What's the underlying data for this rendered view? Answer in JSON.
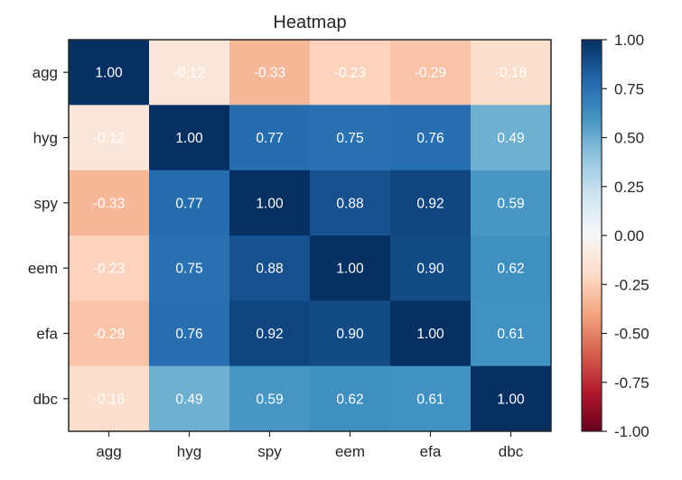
{
  "chart_data": {
    "type": "heatmap",
    "title": "Heatmap",
    "xlabel": "",
    "ylabel": "",
    "x": [
      "agg",
      "hyg",
      "spy",
      "eem",
      "efa",
      "dbc"
    ],
    "y": [
      "agg",
      "hyg",
      "spy",
      "eem",
      "efa",
      "dbc"
    ],
    "values": [
      [
        1.0,
        -0.12,
        -0.33,
        -0.23,
        -0.29,
        -0.18
      ],
      [
        -0.12,
        1.0,
        0.77,
        0.75,
        0.76,
        0.49
      ],
      [
        -0.33,
        0.77,
        1.0,
        0.88,
        0.92,
        0.59
      ],
      [
        -0.23,
        0.75,
        0.88,
        1.0,
        0.9,
        0.62
      ],
      [
        -0.29,
        0.76,
        0.92,
        0.9,
        1.0,
        0.61
      ],
      [
        -0.18,
        0.49,
        0.59,
        0.62,
        0.61,
        1.0
      ]
    ],
    "cell_labels": [
      [
        "1.00",
        "-0.12",
        "-0.33",
        "-0.23",
        "-0.29",
        "-0.18"
      ],
      [
        "-0.12",
        "1.00",
        "0.77",
        "0.75",
        "0.76",
        "0.49"
      ],
      [
        "-0.33",
        "0.77",
        "1.00",
        "0.88",
        "0.92",
        "0.59"
      ],
      [
        "-0.23",
        "0.75",
        "0.88",
        "1.00",
        "0.90",
        "0.62"
      ],
      [
        "-0.29",
        "0.76",
        "0.92",
        "0.90",
        "1.00",
        "0.61"
      ],
      [
        "-0.18",
        "0.49",
        "0.59",
        "0.62",
        "0.61",
        "1.00"
      ]
    ],
    "colorbar": {
      "range": [
        -1.0,
        1.0
      ],
      "ticks": [
        "-1.00",
        "-0.75",
        "-0.50",
        "-0.25",
        "0.00",
        "0.25",
        "0.50",
        "0.75",
        "1.00"
      ],
      "colormap": "RdBu"
    },
    "grid": false,
    "legend": "none"
  }
}
